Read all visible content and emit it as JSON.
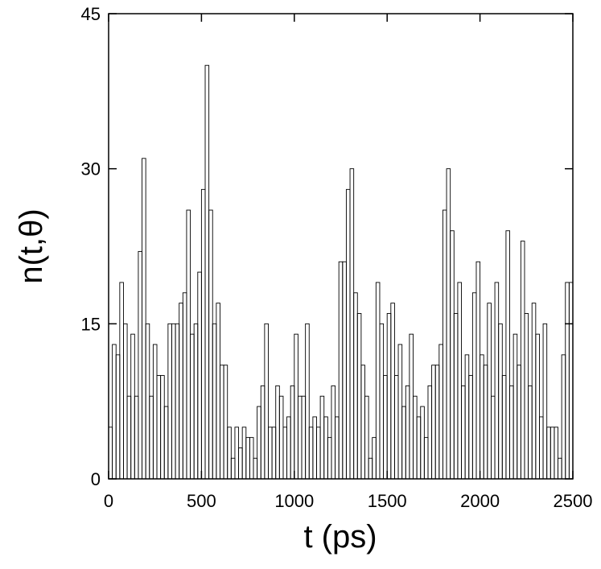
{
  "chart_data": {
    "type": "histogram",
    "x_label": "t (ps)",
    "y_label": "n(t,θ)",
    "bins": [
      0,
      20,
      40,
      60,
      80,
      100,
      120,
      140,
      160,
      180,
      200,
      220,
      240,
      260,
      280,
      300,
      320,
      340,
      360,
      380,
      400,
      420,
      440,
      460,
      480,
      500,
      520,
      540,
      560,
      580,
      600,
      620,
      640,
      660,
      680,
      700,
      720,
      740,
      760,
      780,
      800,
      820,
      840,
      860,
      880,
      900,
      920,
      940,
      960,
      980,
      1000,
      1020,
      1040,
      1060,
      1080,
      1100,
      1120,
      1140,
      1160,
      1180,
      1200,
      1220,
      1240,
      1260,
      1280,
      1300,
      1320,
      1340,
      1360,
      1380,
      1400,
      1420,
      1440,
      1460,
      1480,
      1500,
      1520,
      1540,
      1560,
      1580,
      1600,
      1620,
      1640,
      1660,
      1680,
      1700,
      1720,
      1740,
      1760,
      1780,
      1800,
      1820,
      1840,
      1860,
      1880,
      1900,
      1920,
      1940,
      1960,
      1980,
      2000,
      2020,
      2040,
      2060,
      2080,
      2100,
      2120,
      2140,
      2160,
      2180,
      2200,
      2220,
      2240,
      2260,
      2280,
      2300,
      2320,
      2340,
      2360,
      2380,
      2400,
      2420,
      2440,
      2460,
      2480,
      2500
    ],
    "values": [
      5,
      13,
      12,
      19,
      15,
      8,
      14,
      8,
      22,
      31,
      15,
      8,
      13,
      10,
      10,
      7,
      15,
      15,
      15,
      17,
      18,
      26,
      14,
      15,
      20,
      28,
      40,
      26,
      15,
      17,
      11,
      11,
      5,
      2,
      5,
      3,
      5,
      4,
      4,
      2,
      7,
      9,
      15,
      5,
      5,
      9,
      8,
      5,
      6,
      9,
      14,
      8,
      8,
      15,
      5,
      6,
      5,
      8,
      6,
      4,
      9,
      6,
      21,
      21,
      28,
      30,
      18,
      16,
      11,
      8,
      2,
      4,
      19,
      15,
      10,
      16,
      17,
      10,
      13,
      7,
      9,
      14,
      8,
      6,
      7,
      4,
      9,
      11,
      11,
      13,
      26,
      30,
      24,
      16,
      19,
      9,
      12,
      10,
      18,
      21,
      12,
      11,
      17,
      8,
      19,
      15,
      10,
      24,
      9,
      14,
      11,
      23,
      16,
      9,
      17,
      14,
      6,
      15,
      5,
      5,
      5,
      2,
      12,
      19,
      19
    ],
    "color": "#000000",
    "xlim": [
      0,
      2500
    ],
    "xticks": [
      0,
      500,
      1000,
      1500,
      2000,
      2500
    ],
    "ylim": [
      0,
      45
    ],
    "yticks": [
      0,
      15,
      30,
      45
    ]
  }
}
